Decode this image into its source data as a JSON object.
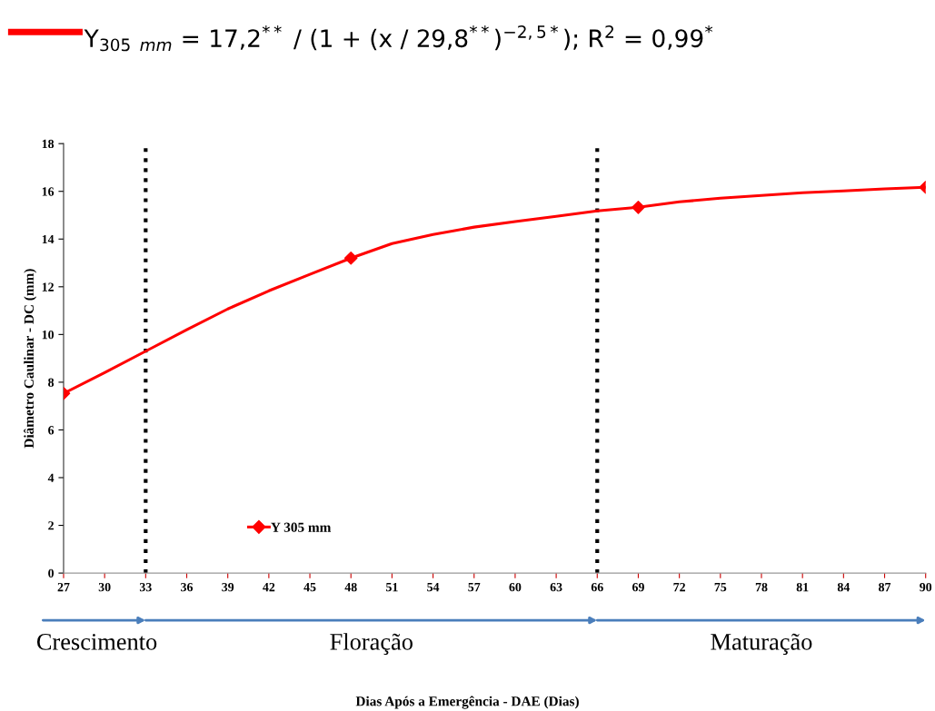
{
  "chart_data": {
    "type": "line",
    "ylabel": "Diâmetro Caulinar - DC (mm)",
    "xlim": [
      27,
      90
    ],
    "xticks": [
      27,
      30,
      33,
      36,
      39,
      42,
      45,
      48,
      51,
      54,
      57,
      60,
      63,
      66,
      69,
      72,
      75,
      78,
      81,
      84,
      87,
      90
    ],
    "ylim": [
      0,
      18
    ],
    "yticks": [
      0,
      2,
      4,
      6,
      8,
      10,
      12,
      14,
      16,
      18
    ],
    "grid": false,
    "legend": "bottom left",
    "series": [
      {
        "name": "Y 305 mm",
        "color": "#ff0000",
        "marker": "none",
        "x": [
          27,
          30,
          33,
          36,
          39,
          42,
          45,
          48,
          51,
          54,
          57,
          60,
          63,
          66,
          69,
          72,
          75,
          78,
          81,
          84,
          87,
          90
        ],
        "values": [
          7.53,
          8.4,
          9.3,
          10.2,
          11.07,
          11.83,
          12.52,
          13.2,
          13.81,
          14.19,
          14.5,
          14.73,
          14.95,
          15.18,
          15.33,
          15.56,
          15.71,
          15.83,
          15.94,
          16.02,
          16.1,
          16.17
        ]
      },
      {
        "type": "scatter",
        "color": "#ff0000",
        "marker": "diamond",
        "x": [
          27,
          48,
          69,
          90
        ],
        "values": [
          7.53,
          13.2,
          15.33,
          16.17
        ]
      }
    ],
    "ref_lines": [
      {
        "axis": "x",
        "value": 33,
        "color": "#000000",
        "line_style": "dotted"
      },
      {
        "axis": "x",
        "value": 66,
        "color": "#000000",
        "line_style": "dotted"
      }
    ],
    "annotations": [
      "Y$_{305}$ $_{mm}$ = 17,2$^{**}$ / (1 + (x / 29,8$^{**}$)$^{−2,5*}$); R$^{2}$ = 0,99$^{*}$",
      "Crescimento",
      "Floração",
      "Maturação",
      "Dias Após a Emergência - DAE (Dias)"
    ]
  }
}
